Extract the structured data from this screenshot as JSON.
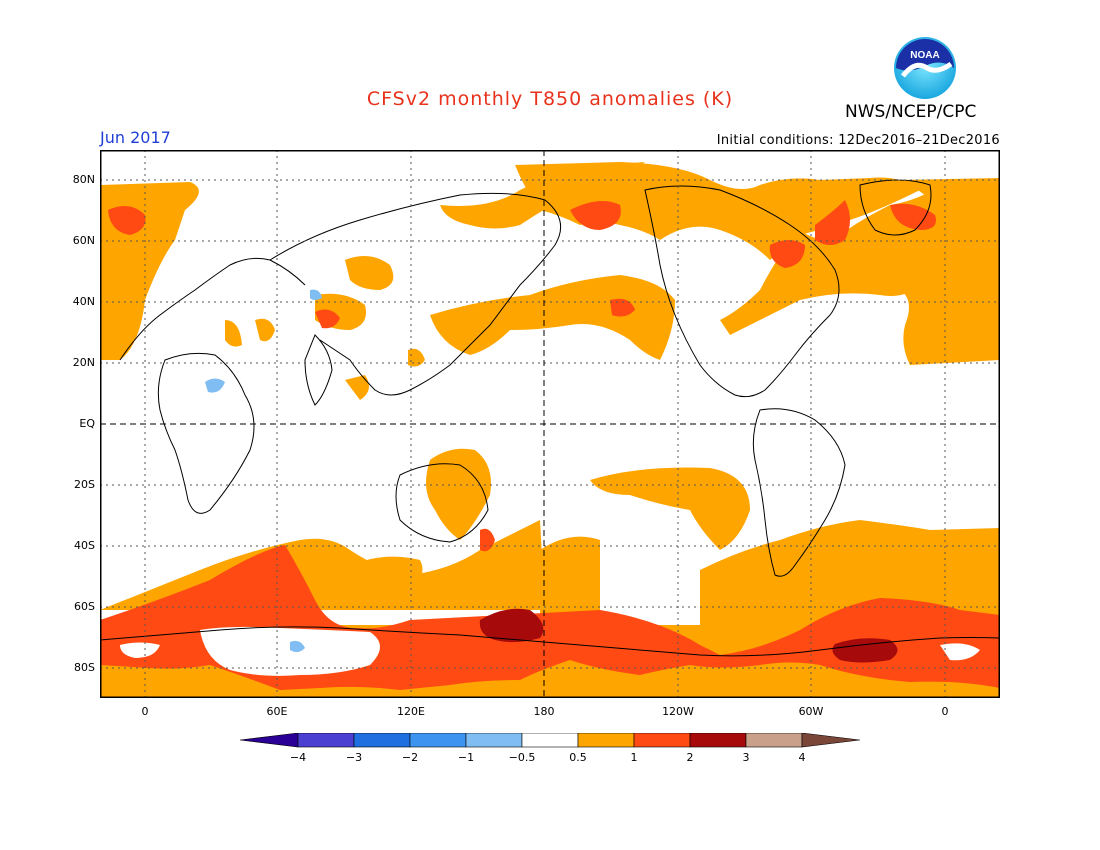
{
  "header": {
    "title": "CFSv2 monthly T850 anomalies (K)",
    "month": "Jun 2017",
    "initial_conditions": "Initial conditions: 12Dec2016–21Dec2016",
    "agency": "NWS/NCEP/CPC",
    "logo_text": "NOAA"
  },
  "map": {
    "lat_labels": [
      "80N",
      "60N",
      "40N",
      "20N",
      "EQ",
      "20S",
      "40S",
      "60S",
      "80S"
    ],
    "lon_labels": [
      "0",
      "60E",
      "120E",
      "180",
      "120W",
      "60W",
      "0"
    ]
  },
  "legend": {
    "tick_labels": [
      "−4",
      "−3",
      "−2",
      "−1",
      "−0.5",
      "0.5",
      "1",
      "2",
      "3",
      "4"
    ],
    "colors": [
      "#2a0096",
      "#4a3fd0",
      "#1f6fe0",
      "#3d94f0",
      "#80bdf2",
      "#ffffff",
      "#ffa500",
      "#ff4a14",
      "#a60a0a",
      "#c9a08a",
      "#7a4638"
    ]
  },
  "colors": {
    "anom_05_1": "#ffa500",
    "anom_1_2": "#ff4a14",
    "anom_2_3": "#a60a0a",
    "anom_neg": "#80bdf2",
    "title": "#e8321c",
    "month": "#1f3fd6"
  }
}
